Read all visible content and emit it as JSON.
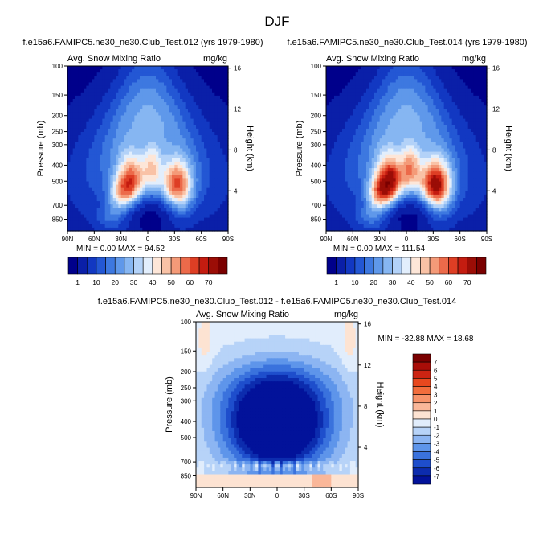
{
  "figure_title": "DJF",
  "colors": {
    "frame": "#000000"
  },
  "chart_data": [
    {
      "id": "panel1",
      "type": "heatmap",
      "title": "f.e15a6.FAMIPC5.ne30_ne30.Club_Test.012 (yrs 1979-1980)",
      "left_label": "Avg. Snow Mixing Ratio",
      "units": "mg/kg",
      "ylabel": "Pressure (mb)",
      "ylabel_right": "Height (km)",
      "x_ticks": [
        "90N",
        "60N",
        "30N",
        "0",
        "30S",
        "60S",
        "90S"
      ],
      "y_ticks": [
        "100",
        "150",
        "200",
        "250",
        "300",
        "400",
        "500",
        "700",
        "850"
      ],
      "y_ticks_right": [
        "16",
        "12",
        "8",
        "4"
      ],
      "xlim": [
        90,
        -90
      ],
      "ylim": [
        1000,
        100
      ],
      "stats": "MIN =  0.00  MAX = 94.52",
      "colorbar_labels": [
        "1",
        "10",
        "20",
        "30",
        "40",
        "50",
        "60",
        "70"
      ]
    },
    {
      "id": "panel2",
      "type": "heatmap",
      "title": "f.e15a6.FAMIPC5.ne30_ne30.Club_Test.014 (yrs 1979-1980)",
      "left_label": "Avg. Snow Mixing Ratio",
      "units": "mg/kg",
      "ylabel": "Pressure (mb)",
      "ylabel_right": "Height (km)",
      "x_ticks": [
        "90N",
        "60N",
        "30N",
        "0",
        "30S",
        "60S",
        "90S"
      ],
      "y_ticks": [
        "100",
        "150",
        "200",
        "250",
        "300",
        "400",
        "500",
        "700",
        "850"
      ],
      "y_ticks_right": [
        "16",
        "12",
        "8",
        "4"
      ],
      "xlim": [
        90,
        -90
      ],
      "ylim": [
        1000,
        100
      ],
      "stats": "MIN =  0.00  MAX = 111.54",
      "colorbar_labels": [
        "1",
        "10",
        "20",
        "30",
        "40",
        "50",
        "60",
        "70"
      ]
    },
    {
      "id": "panel3",
      "type": "heatmap",
      "title": "f.e15a6.FAMIPC5.ne30_ne30.Club_Test.012 - f.e15a6.FAMIPC5.ne30_ne30.Club_Test.014",
      "left_label": "Avg. Snow Mixing Ratio",
      "units": "mg/kg",
      "ylabel": "Pressure (mb)",
      "ylabel_right": "Height (km)",
      "x_ticks": [
        "90N",
        "60N",
        "30N",
        "0",
        "30S",
        "60S",
        "90S"
      ],
      "y_ticks": [
        "100",
        "150",
        "200",
        "250",
        "300",
        "400",
        "500",
        "700",
        "850"
      ],
      "y_ticks_right": [
        "16",
        "12",
        "8",
        "4"
      ],
      "xlim": [
        90,
        -90
      ],
      "ylim": [
        1000,
        100
      ],
      "stats": "MIN = -32.88  MAX =  18.68",
      "colorbar_labels": [
        "7",
        "6",
        "5",
        "4",
        "3",
        "2",
        "1",
        "0",
        "-1",
        "-2",
        "-3",
        "-4",
        "-5",
        "-6",
        "-7"
      ]
    }
  ]
}
